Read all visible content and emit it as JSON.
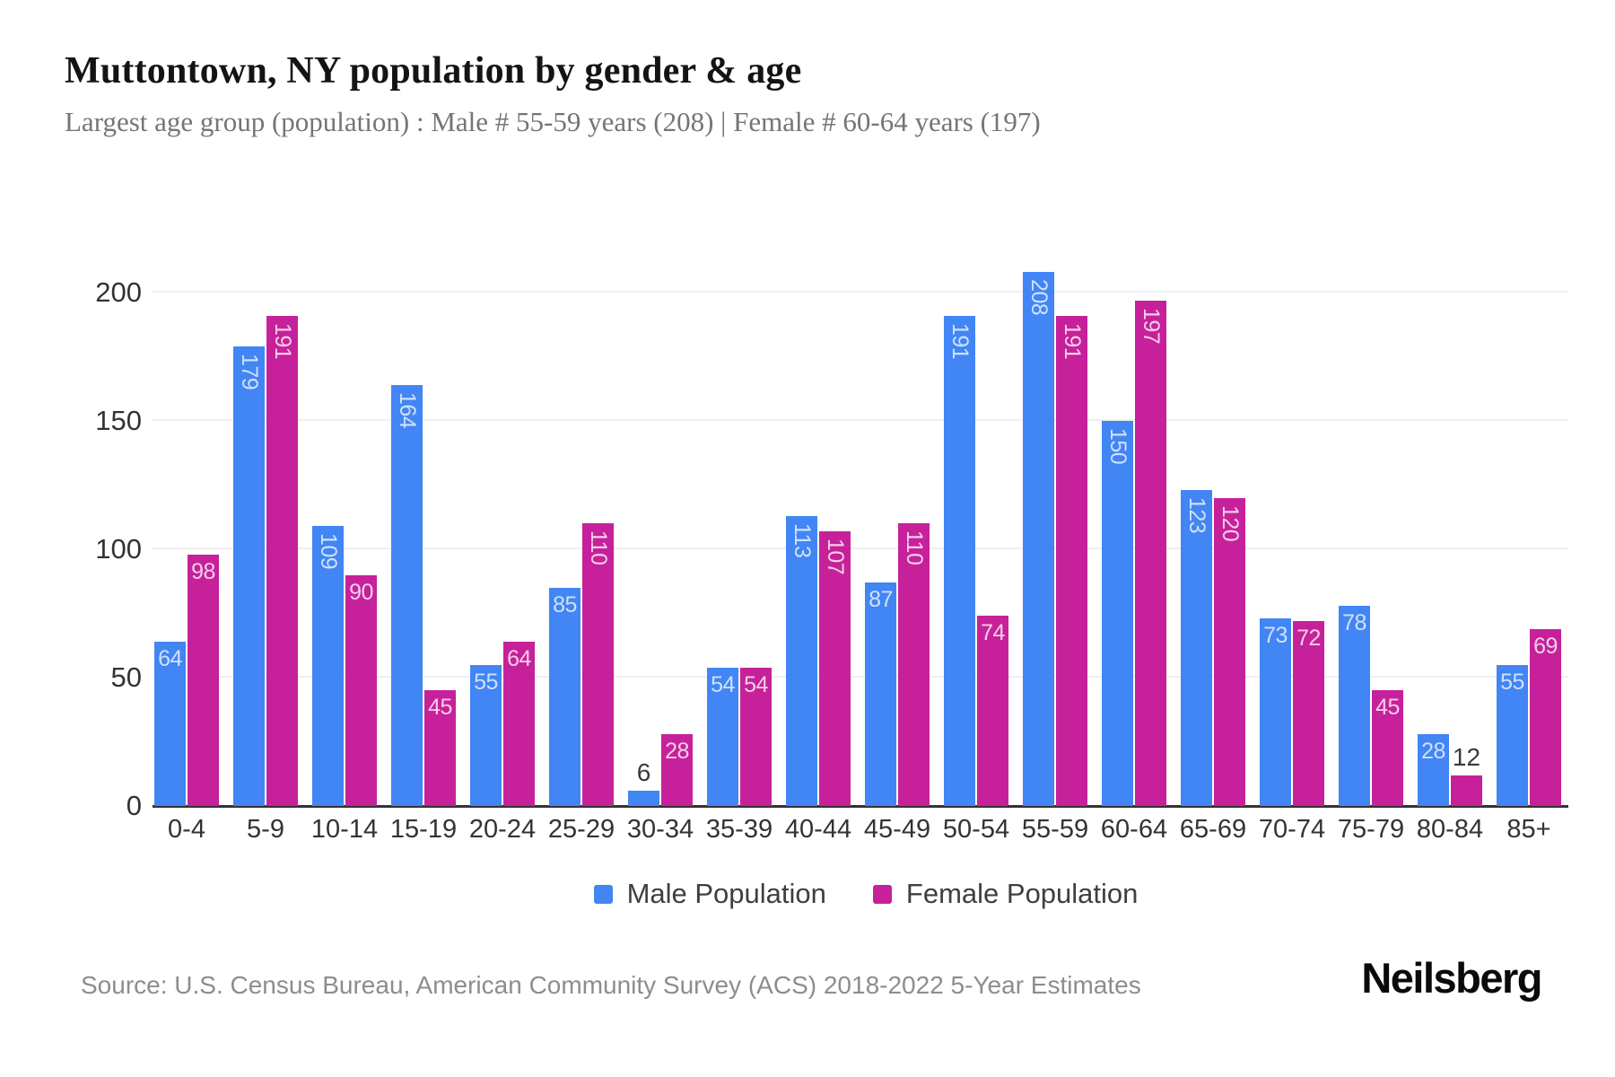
{
  "header": {
    "title": "Muttontown, NY population by gender & age",
    "subtitle": "Largest age group (population) : Male # 55-59 years (208) | Female # 60-64 years (197)"
  },
  "chart_data": {
    "type": "bar",
    "title": "Muttontown, NY population by gender & age",
    "categories": [
      "0-4",
      "5-9",
      "10-14",
      "15-19",
      "20-24",
      "25-29",
      "30-34",
      "35-39",
      "40-44",
      "45-49",
      "50-54",
      "55-59",
      "60-64",
      "65-69",
      "70-74",
      "75-79",
      "80-84",
      "85+"
    ],
    "series": [
      {
        "name": "Male Population",
        "color": "#4285f4",
        "label_color": "#cfe1fb",
        "values": [
          64,
          179,
          109,
          164,
          55,
          85,
          6,
          54,
          113,
          87,
          191,
          208,
          150,
          123,
          73,
          78,
          28,
          55
        ]
      },
      {
        "name": "Female Population",
        "color": "#c6219a",
        "label_color": "#f3cfe9",
        "values": [
          98,
          191,
          90,
          45,
          64,
          110,
          28,
          54,
          107,
          110,
          74,
          191,
          197,
          120,
          72,
          45,
          12,
          69
        ]
      }
    ],
    "xlabel": "",
    "ylabel": "",
    "yticks": [
      0,
      50,
      100,
      150,
      200
    ],
    "ylim": [
      0,
      219
    ],
    "grid": true,
    "legend_position": "bottom",
    "grid_color": "#efefef",
    "axis_color": "#333333",
    "tick_color": "#333333"
  },
  "footer": {
    "source": "Source: U.S. Census Bureau, American Community Survey (ACS) 2018-2022 5-Year Estimates",
    "brand": "Neilsberg"
  }
}
